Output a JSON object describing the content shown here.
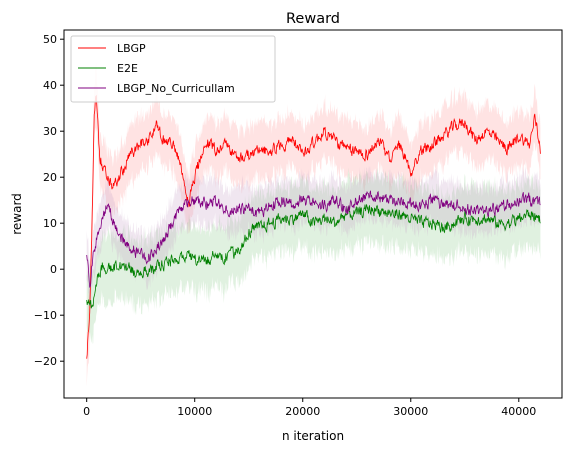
{
  "chart_data": {
    "type": "line",
    "title": "Reward",
    "xlabel": "n iteration",
    "ylabel": "reward",
    "xlim": [
      -2100,
      44000
    ],
    "ylim": [
      -28,
      52
    ],
    "xticks": [
      0,
      10000,
      20000,
      30000,
      40000
    ],
    "xtick_labels": [
      "0",
      "10000",
      "20000",
      "30000",
      "40000"
    ],
    "yticks": [
      -20,
      -10,
      0,
      10,
      20,
      30,
      40,
      50
    ],
    "ytick_labels": [
      "−20",
      "−10",
      "0",
      "10",
      "20",
      "30",
      "40",
      "50"
    ],
    "grid": false,
    "legend_position": "top-left",
    "x_max": 42000,
    "series": [
      {
        "name": "LBGP",
        "color": "#ff0000",
        "band_color": "#ff9999",
        "anchors": [
          [
            0,
            -20
          ],
          [
            300,
            -8
          ],
          [
            500,
            10
          ],
          [
            700,
            33
          ],
          [
            900,
            38
          ],
          [
            1200,
            25
          ],
          [
            1500,
            22
          ],
          [
            2000,
            19
          ],
          [
            2500,
            18
          ],
          [
            3000,
            20
          ],
          [
            3500,
            22
          ],
          [
            4000,
            25
          ],
          [
            5000,
            27
          ],
          [
            6000,
            29
          ],
          [
            6500,
            32
          ],
          [
            7000,
            28
          ],
          [
            8000,
            27
          ],
          [
            8500,
            24
          ],
          [
            9000,
            18
          ],
          [
            9500,
            15
          ],
          [
            10000,
            20
          ],
          [
            11000,
            28
          ],
          [
            12000,
            26
          ],
          [
            13000,
            27
          ],
          [
            14000,
            24
          ],
          [
            15000,
            25
          ],
          [
            17000,
            26
          ],
          [
            19000,
            28
          ],
          [
            20000,
            25
          ],
          [
            22000,
            30
          ],
          [
            24000,
            26
          ],
          [
            26000,
            25
          ],
          [
            27000,
            28
          ],
          [
            28000,
            24
          ],
          [
            29000,
            27
          ],
          [
            30000,
            21
          ],
          [
            31000,
            26
          ],
          [
            32000,
            27
          ],
          [
            33000,
            29
          ],
          [
            34000,
            31
          ],
          [
            35000,
            32
          ],
          [
            36000,
            28
          ],
          [
            37000,
            30
          ],
          [
            38000,
            28
          ],
          [
            39000,
            26
          ],
          [
            40000,
            29
          ],
          [
            41000,
            27
          ],
          [
            41500,
            33
          ],
          [
            42000,
            26
          ]
        ],
        "band_halfwidth": 6
      },
      {
        "name": "E2E",
        "color": "#008000",
        "band_color": "#8fce8f",
        "anchors": [
          [
            0,
            -7
          ],
          [
            500,
            -8
          ],
          [
            1000,
            -2
          ],
          [
            1500,
            1
          ],
          [
            2000,
            0
          ],
          [
            3000,
            1
          ],
          [
            4000,
            0
          ],
          [
            5000,
            -1
          ],
          [
            6000,
            0
          ],
          [
            7000,
            1
          ],
          [
            8000,
            2
          ],
          [
            9000,
            3
          ],
          [
            10000,
            2
          ],
          [
            11000,
            2
          ],
          [
            12000,
            3
          ],
          [
            13000,
            3
          ],
          [
            14000,
            4
          ],
          [
            15000,
            8
          ],
          [
            16000,
            9
          ],
          [
            17000,
            10
          ],
          [
            18000,
            11
          ],
          [
            19000,
            11
          ],
          [
            20000,
            12
          ],
          [
            21000,
            10
          ],
          [
            22000,
            11
          ],
          [
            23000,
            10
          ],
          [
            24000,
            12
          ],
          [
            25000,
            12
          ],
          [
            26000,
            13
          ],
          [
            27000,
            13
          ],
          [
            28000,
            12
          ],
          [
            29000,
            12
          ],
          [
            30000,
            11
          ],
          [
            31000,
            10
          ],
          [
            32000,
            10
          ],
          [
            33000,
            9
          ],
          [
            34000,
            10
          ],
          [
            35000,
            11
          ],
          [
            36000,
            11
          ],
          [
            37000,
            11
          ],
          [
            38000,
            10
          ],
          [
            39000,
            10
          ],
          [
            40000,
            11
          ],
          [
            41000,
            12
          ],
          [
            42000,
            11
          ]
        ],
        "band_halfwidth": 7
      },
      {
        "name": "LBGP_No_Curricullam",
        "color": "#800080",
        "band_color": "#c8a6c8",
        "anchors": [
          [
            0,
            3
          ],
          [
            300,
            -4
          ],
          [
            600,
            3
          ],
          [
            1000,
            8
          ],
          [
            1500,
            12
          ],
          [
            2000,
            14
          ],
          [
            2500,
            10
          ],
          [
            3000,
            8
          ],
          [
            3500,
            6
          ],
          [
            4000,
            5
          ],
          [
            5000,
            3
          ],
          [
            6000,
            3
          ],
          [
            7000,
            6
          ],
          [
            7500,
            8
          ],
          [
            8000,
            10
          ],
          [
            9000,
            14
          ],
          [
            10000,
            15
          ],
          [
            11000,
            14
          ],
          [
            12000,
            15
          ],
          [
            13000,
            13
          ],
          [
            14000,
            13
          ],
          [
            15000,
            13
          ],
          [
            16000,
            12
          ],
          [
            17000,
            14
          ],
          [
            18000,
            15
          ],
          [
            19000,
            14
          ],
          [
            20000,
            15
          ],
          [
            21000,
            14
          ],
          [
            22000,
            14
          ],
          [
            23000,
            15
          ],
          [
            24000,
            13
          ],
          [
            25000,
            15
          ],
          [
            26000,
            16
          ],
          [
            27000,
            16
          ],
          [
            28000,
            15
          ],
          [
            29000,
            15
          ],
          [
            30000,
            14
          ],
          [
            31000,
            14
          ],
          [
            32000,
            15
          ],
          [
            33000,
            14
          ],
          [
            34000,
            14
          ],
          [
            35000,
            13
          ],
          [
            36000,
            13
          ],
          [
            37000,
            13
          ],
          [
            38000,
            13
          ],
          [
            39000,
            14
          ],
          [
            40000,
            15
          ],
          [
            41000,
            15
          ],
          [
            42000,
            14
          ]
        ],
        "band_halfwidth": 5
      }
    ]
  }
}
